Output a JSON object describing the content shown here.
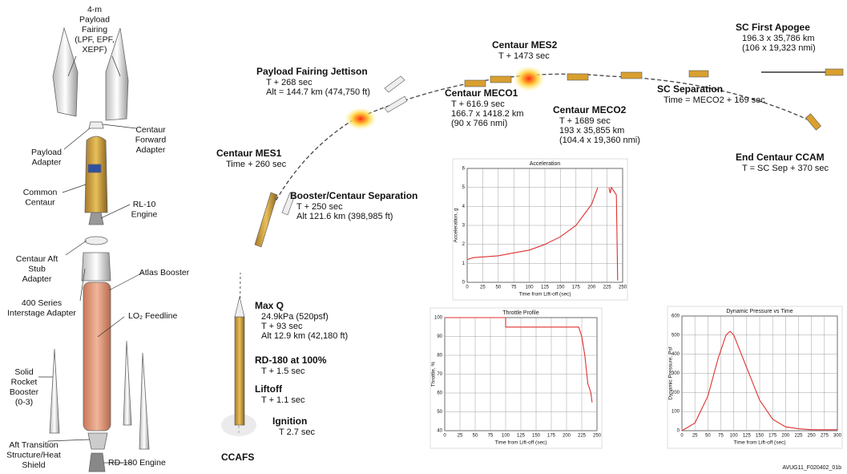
{
  "figure_id": "AVUG11_F020402_01b",
  "components": [
    {
      "lines": [
        "4-m",
        "Payload",
        "Fairing",
        "(LPF, EPF,",
        "XEPF)"
      ]
    },
    {
      "lines": [
        "Centaur",
        "Forward",
        "Adapter"
      ]
    },
    {
      "lines": [
        "Payload",
        "Adapter"
      ]
    },
    {
      "lines": [
        "Common",
        "Centaur"
      ]
    },
    {
      "lines": [
        "RL-10",
        "Engine"
      ]
    },
    {
      "lines": [
        "Centaur Aft",
        "Stub",
        "Adapter"
      ]
    },
    {
      "lines": [
        "Atlas Booster"
      ]
    },
    {
      "lines": [
        "400 Series",
        "Interstage Adapter"
      ]
    },
    {
      "lines": [
        "LO₂ Feedline"
      ]
    },
    {
      "lines": [
        "Solid",
        "Rocket",
        "Booster",
        "(0-3)"
      ]
    },
    {
      "lines": [
        "Aft Transition",
        "Structure/Heat",
        "Shield"
      ]
    },
    {
      "lines": [
        "RD-180 Engine"
      ]
    }
  ],
  "events": [
    {
      "title": "Payload Fairing Jettison",
      "lines": [
        "T + 268 sec",
        "Alt = 144.7 km (474,750 ft)"
      ]
    },
    {
      "title": "Centaur MES2",
      "lines": [
        "T + 1473 sec"
      ]
    },
    {
      "title": "SC  First Apogee",
      "lines": [
        "196.3 x 35,786 km",
        "(106 x 19,323 nmi)"
      ]
    },
    {
      "title": "Centaur MECO1",
      "lines": [
        "T + 616.9 sec",
        "166.7 x 1418.2 km",
        "(90 x 766 nmi)"
      ]
    },
    {
      "title": "Centaur MECO2",
      "lines": [
        "T + 1689 sec",
        "193 x 35,855 km",
        "(104.4 x 19,360 nmi)"
      ]
    },
    {
      "title": "SC  Separation",
      "lines": [
        "Time = MECO2 + 169 sec"
      ]
    },
    {
      "title": "End Centaur CCAM",
      "lines": [
        "T = SC Sep + 370 sec"
      ]
    },
    {
      "title": "Centaur MES1",
      "lines": [
        "Time + 260 sec"
      ]
    },
    {
      "title": "Booster/Centaur Separation",
      "lines": [
        "T + 250 sec",
        "Alt 121.6 km (398,985 ft)"
      ]
    },
    {
      "title": "Max Q",
      "lines": [
        "24.9kPa (520psf)",
        "T + 93 sec",
        "Alt 12.9 km (42,180 ft)"
      ]
    },
    {
      "title": "RD-180 at 100%",
      "lines": [
        "T + 1.5 sec"
      ]
    },
    {
      "title": "Liftoff",
      "lines": [
        "T + 1.1 sec"
      ]
    },
    {
      "title": "Ignition",
      "lines": [
        "T  2.7 sec"
      ]
    },
    {
      "title": "CCAFS",
      "lines": []
    }
  ],
  "charts": [
    {
      "type": "line",
      "title": "Acceleration",
      "xlabel": "Time from Lift-off (sec)",
      "ylabel": "Acceleration, g",
      "xlim": [
        0,
        250
      ],
      "xticks": [
        0,
        25,
        50,
        75,
        100,
        125,
        150,
        175,
        200,
        225,
        250
      ],
      "ylim": [
        0,
        6
      ],
      "yticks": [
        0,
        1,
        2,
        3,
        4,
        5,
        6
      ],
      "grid": true,
      "color": "#e03030",
      "x": [
        0,
        10,
        50,
        75,
        100,
        125,
        150,
        175,
        200,
        210,
        220,
        228,
        230,
        232,
        240,
        242
      ],
      "values": [
        1.2,
        1.3,
        1.4,
        1.55,
        1.7,
        2.0,
        2.4,
        3.0,
        4.1,
        5.0,
        null,
        5.0,
        4.7,
        5.0,
        4.6,
        0.1
      ]
    },
    {
      "type": "line",
      "title": "Throttle Profile",
      "xlabel": "Time from Lift-off (sec)",
      "ylabel": "Throttle, %",
      "xlim": [
        0,
        250
      ],
      "xticks": [
        0,
        25,
        50,
        75,
        100,
        125,
        150,
        175,
        200,
        225,
        250
      ],
      "ylim": [
        40,
        100
      ],
      "yticks": [
        40,
        50,
        60,
        70,
        80,
        90,
        100
      ],
      "grid": true,
      "color": "#e03030",
      "x": [
        0,
        100,
        100,
        220,
        225,
        230,
        235,
        240,
        242
      ],
      "values": [
        100,
        100,
        95,
        95,
        90,
        80,
        65,
        60,
        55
      ]
    },
    {
      "type": "line",
      "title": "Dynamic Pressure vs Time",
      "xlabel": "Time from Lift-off (sec)",
      "ylabel": "Dynamic Pressure, Psf",
      "xlim": [
        0,
        300
      ],
      "xticks": [
        0,
        25,
        50,
        75,
        100,
        125,
        150,
        175,
        200,
        225,
        250,
        275,
        300
      ],
      "ylim": [
        0,
        600
      ],
      "yticks": [
        0,
        100,
        200,
        300,
        400,
        500,
        600
      ],
      "grid": true,
      "color": "#e03030",
      "x": [
        0,
        25,
        50,
        70,
        85,
        93,
        100,
        125,
        150,
        175,
        200,
        225,
        250,
        300
      ],
      "values": [
        0,
        40,
        180,
        380,
        500,
        520,
        500,
        330,
        160,
        60,
        20,
        10,
        5,
        5
      ]
    }
  ]
}
